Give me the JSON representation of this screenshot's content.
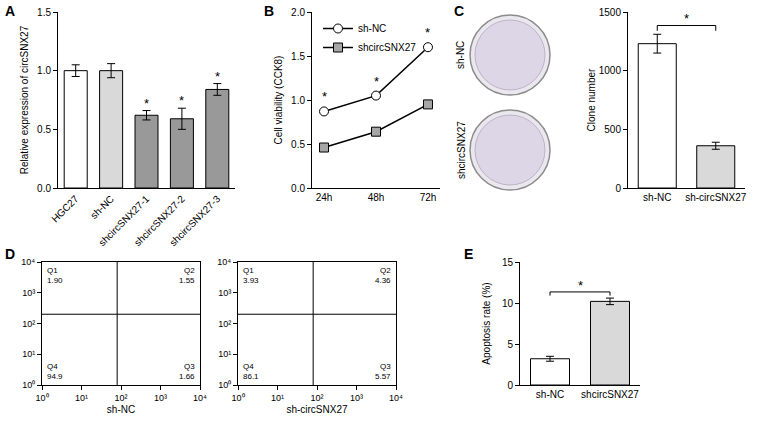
{
  "chart_data": [
    {
      "panel": "A",
      "type": "bar",
      "categories": [
        "HGC27",
        "sh-NC",
        "shcircSNX27-1",
        "shcircSNX27-2",
        "shcircSNX27-3"
      ],
      "values": [
        1.0,
        1.0,
        0.62,
        0.59,
        0.84
      ],
      "errors": [
        0.05,
        0.06,
        0.04,
        0.09,
        0.05
      ],
      "colors": [
        "#ffffff",
        "#d9d9d9",
        "#999999",
        "#999999",
        "#999999"
      ],
      "ylabel": "Relative expression of circSNX27",
      "ylim": [
        0,
        1.5
      ],
      "yticks": [
        {
          "value": 0,
          "label": "0.0"
        },
        0.5,
        {
          "value": 1,
          "label": "1.0"
        },
        1.5
      ],
      "significance": [
        null,
        null,
        "*",
        "*",
        "*"
      ]
    },
    {
      "panel": "B",
      "type": "line",
      "categories": [
        "24h",
        "48h",
        "72h"
      ],
      "series": [
        {
          "name": "sh-NC",
          "color": "#ffffff",
          "marker": "circle",
          "values": [
            0.87,
            1.05,
            1.6
          ]
        },
        {
          "name": "shcircSNX27",
          "color": "#a6a6a6",
          "marker": "square",
          "values": [
            0.46,
            0.64,
            0.95
          ]
        }
      ],
      "ylabel": "Cell viability (CCK8)",
      "ylim": [
        0,
        2
      ],
      "yticks": [
        {
          "value": 0,
          "label": "0.0"
        },
        0.5,
        {
          "value": 1,
          "label": "1.0"
        },
        1.5,
        {
          "value": 2,
          "label": "2.0"
        }
      ],
      "legend": "upper left",
      "significance": [
        "*",
        "*",
        "*"
      ]
    },
    {
      "panel": "C",
      "type": "image",
      "labels": [
        "sh-NC",
        "shcircSNX27"
      ]
    },
    {
      "panel": "C",
      "type": "bar",
      "categories": [
        "sh-NC",
        "sh-circSNX27"
      ],
      "values": [
        1230,
        360
      ],
      "errors": [
        80,
        30
      ],
      "colors": [
        "#ffffff",
        "#d9d9d9"
      ],
      "ylabel": "Clone number",
      "ylim": [
        0,
        1500
      ],
      "yticks": [
        0,
        500,
        1000,
        1500
      ],
      "significance": {
        "text": "*",
        "between": [
          "sh-NC",
          "sh-circSNX27"
        ]
      }
    },
    {
      "panel": "D",
      "type": "quadrant",
      "xlabel": "sh-NC",
      "log": true,
      "xlim": [
        1,
        10000
      ],
      "ylim": [
        1,
        10000
      ],
      "xticks": [
        {
          "value": 1,
          "label": "10⁰"
        },
        {
          "value": 10,
          "label": "10¹"
        },
        {
          "value": 100,
          "label": "10²"
        },
        {
          "value": 1000,
          "label": "10³"
        },
        {
          "value": 10000,
          "label": "10⁴"
        }
      ],
      "yticks": [
        {
          "value": 1,
          "label": "10⁰"
        },
        {
          "value": 10,
          "label": "10¹"
        },
        {
          "value": 100,
          "label": "10²"
        },
        {
          "value": 1000,
          "label": "10³"
        },
        {
          "value": 10000,
          "label": "10⁴"
        }
      ],
      "gate": {
        "x": 80,
        "y": 200
      },
      "quadrants": [
        "Q1",
        "Q2",
        "Q3",
        "Q4"
      ],
      "values": [
        1.9,
        1.55,
        1.66,
        94.9
      ],
      "value_labels": [
        "1.90",
        "1.55",
        "1.66",
        "94.9"
      ]
    },
    {
      "panel": "D",
      "type": "quadrant",
      "xlabel": "sh-circSNX27",
      "log": true,
      "xlim": [
        1,
        10000
      ],
      "ylim": [
        1,
        10000
      ],
      "xticks": [
        {
          "value": 1,
          "label": "10⁰"
        },
        {
          "value": 10,
          "label": "10¹"
        },
        {
          "value": 100,
          "label": "10²"
        },
        {
          "value": 1000,
          "label": "10³"
        },
        {
          "value": 10000,
          "label": "10⁴"
        }
      ],
      "yticks": [
        {
          "value": 1,
          "label": "10⁰"
        },
        {
          "value": 10,
          "label": "10¹"
        },
        {
          "value": 100,
          "label": "10²"
        },
        {
          "value": 1000,
          "label": "10³"
        },
        {
          "value": 10000,
          "label": "10⁴"
        }
      ],
      "gate": {
        "x": 80,
        "y": 200
      },
      "quadrants": [
        "Q1",
        "Q2",
        "Q3",
        "Q4"
      ],
      "values": [
        3.93,
        4.36,
        5.57,
        86.1
      ]
    },
    {
      "panel": "E",
      "type": "bar",
      "categories": [
        "sh-NC",
        "shcircSNX27"
      ],
      "values": [
        3.2,
        10.2
      ],
      "errors": [
        0.3,
        0.4
      ],
      "colors": [
        "#ffffff",
        "#d9d9d9"
      ],
      "ylabel": "Apoptosis rate (%)",
      "ylim": [
        0,
        15
      ],
      "yticks": [
        0,
        5,
        10,
        15
      ],
      "significance": {
        "text": "*",
        "between": [
          "sh-NC",
          "shcircSNX27"
        ]
      }
    }
  ]
}
